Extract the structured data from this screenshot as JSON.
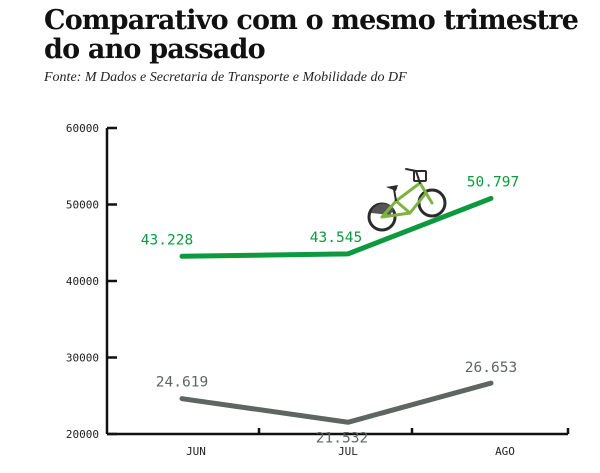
{
  "title": "Comparativo com o mesmo trimestre do ano passado",
  "subtitle": "Fonte: M Dados e Secretaria de Transporte e Mobilidade do DF",
  "chart_data": {
    "type": "line",
    "categories": [
      "JUN",
      "JUL",
      "AGO"
    ],
    "ylim": [
      20000,
      60000
    ],
    "yticks": [
      20000,
      30000,
      40000,
      50000,
      60000
    ],
    "ytick_labels": [
      "20000",
      "30000",
      "40000",
      "50000",
      "60000"
    ],
    "grid": false,
    "legend": "none",
    "series": [
      {
        "values": [
          43228,
          43545,
          50797
        ],
        "labels": [
          "43.228",
          "43.545",
          "50.797"
        ],
        "color": "#0d9a3f"
      },
      {
        "values": [
          24619,
          21532,
          26653
        ],
        "labels": [
          "24.619",
          "21.532",
          "26.653"
        ],
        "color": "#5e6662"
      }
    ]
  },
  "icons": {
    "bike": "bicycle-icon"
  },
  "colors": {
    "axis": "#111111",
    "bike_frame": "#7cb342",
    "bike_dark": "#2b2b2b"
  }
}
